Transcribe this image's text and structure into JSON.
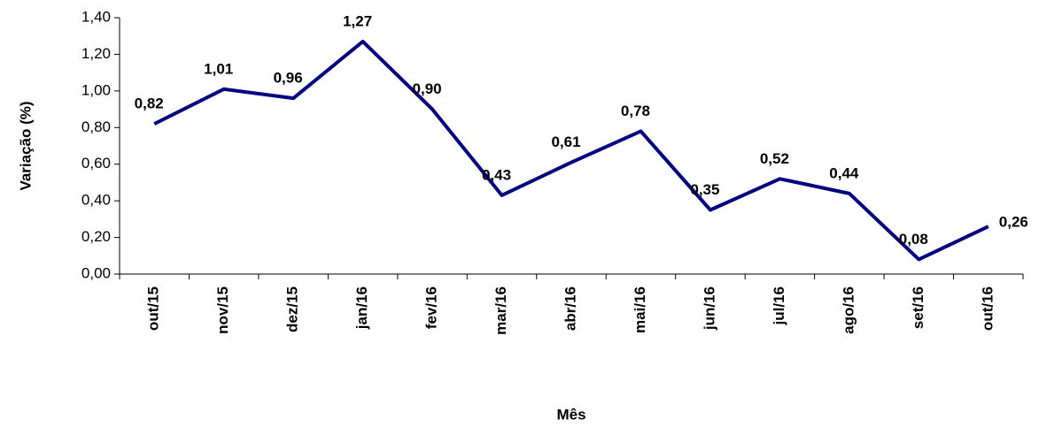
{
  "chart_data": {
    "type": "line",
    "x_label": "Mês",
    "y_label": "Variação (%)",
    "categories": [
      "out/15",
      "nov/15",
      "dez/15",
      "jan/16",
      "fev/16",
      "mar/16",
      "abr/16",
      "mai/16",
      "jun/16",
      "jul/16",
      "ago/16",
      "set/16",
      "out/16"
    ],
    "series": [
      {
        "color": "#000080",
        "values": [
          0.82,
          1.01,
          0.96,
          1.27,
          0.9,
          0.43,
          0.61,
          0.78,
          0.35,
          0.52,
          0.44,
          0.08,
          0.26
        ],
        "value_labels": [
          "0,82",
          "1,01",
          "0,96",
          "1,27",
          "0,90",
          "0,43",
          "0,61",
          "0,78",
          "0,35",
          "0,52",
          "0,44",
          "0,08",
          "0,26"
        ]
      }
    ],
    "ylim": [
      0,
      1.4
    ],
    "yticks": [
      {
        "value": 0,
        "label": "0,00"
      },
      {
        "value": 0.2,
        "label": "0,20"
      },
      {
        "value": 0.4,
        "label": "0,40"
      },
      {
        "value": 0.6,
        "label": "0,60"
      },
      {
        "value": 0.8,
        "label": "0,80"
      },
      {
        "value": 1.0,
        "label": "1,00"
      },
      {
        "value": 1.2,
        "label": "1,20"
      },
      {
        "value": 1.4,
        "label": "1,40"
      }
    ],
    "grid": false
  }
}
